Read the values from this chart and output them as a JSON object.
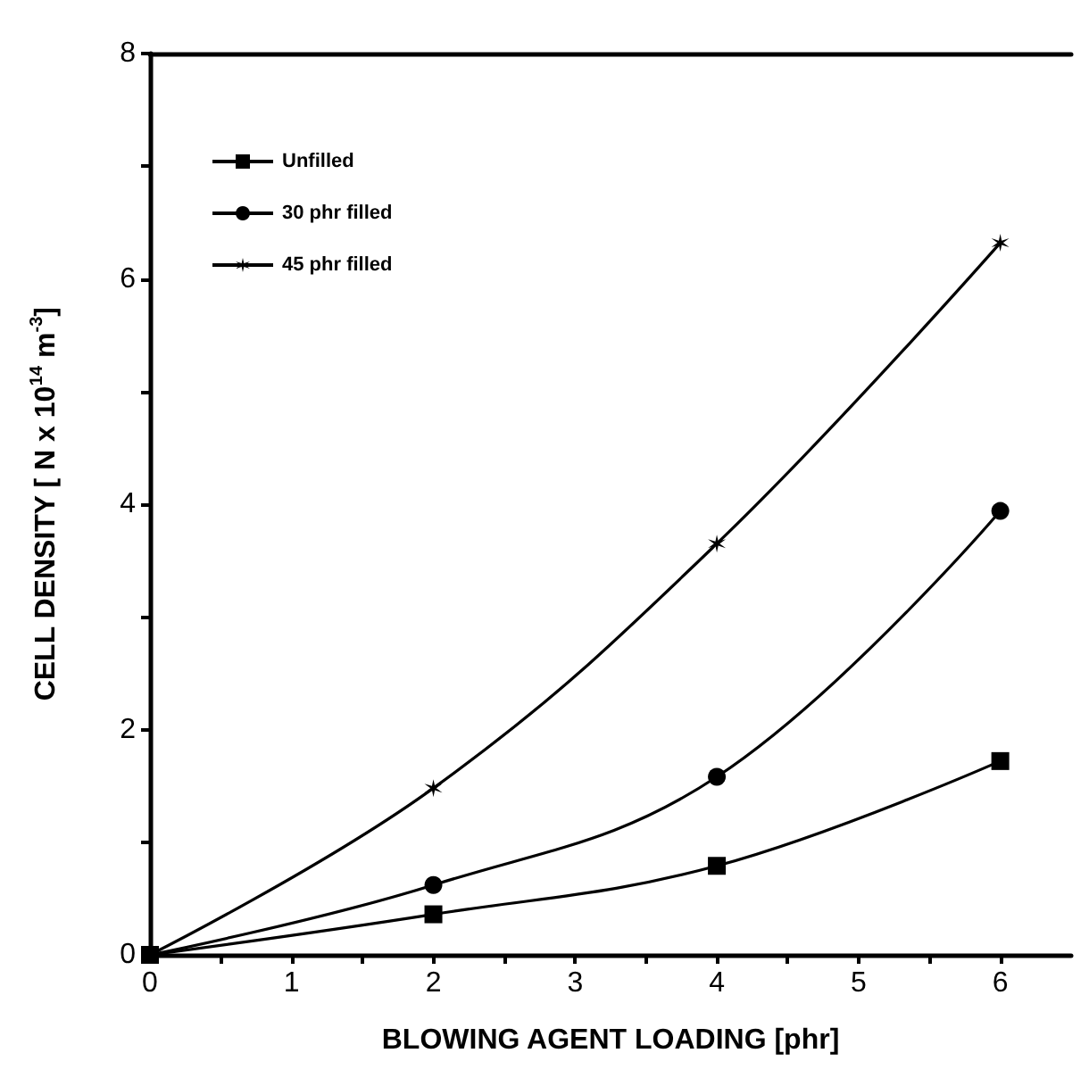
{
  "chart_data": {
    "type": "line",
    "xlabel": "BLOWING AGENT LOADING [phr]",
    "ylabel": "CELL DENSITY [ N x 10$^{14}$ m$^{-3}$]",
    "x": [
      0,
      2,
      4,
      6
    ],
    "series": [
      {
        "name": "Unfilled",
        "color": "#000000",
        "marker": "square",
        "values": [
          0,
          0.36,
          0.79,
          1.72
        ]
      },
      {
        "name": "30 phr filled",
        "color": "#000000",
        "marker": "circle",
        "values": [
          0,
          0.62,
          1.58,
          3.94
        ]
      },
      {
        "name": "45 phr filled",
        "color": "#000000",
        "marker": "cross",
        "values": [
          0,
          1.48,
          3.65,
          6.32
        ]
      }
    ],
    "xlim": [
      0,
      6.5
    ],
    "xticks": [
      0,
      1,
      2,
      3,
      4,
      5,
      6
    ],
    "ylim": [
      0,
      8
    ],
    "yticks": [
      0,
      2,
      4,
      6,
      8
    ],
    "grid": false,
    "legend": "top left",
    "line_style": "solid"
  }
}
